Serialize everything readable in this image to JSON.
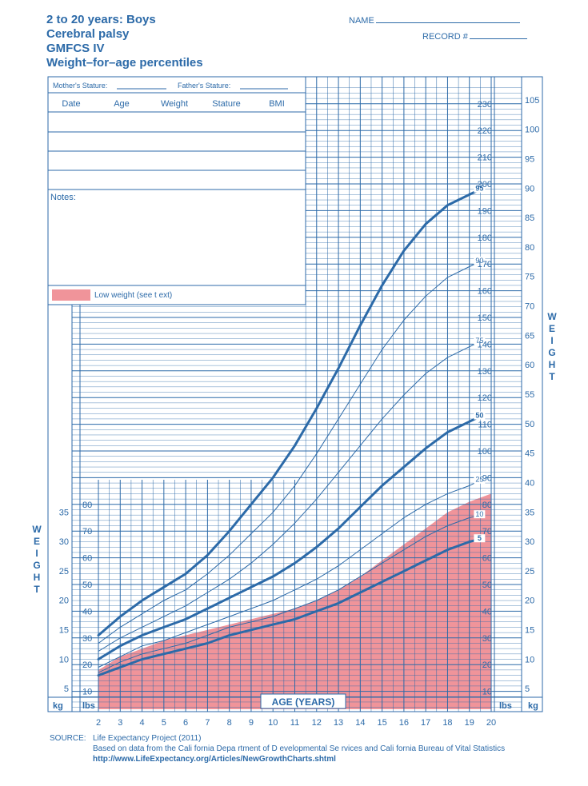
{
  "header": {
    "title_lines": [
      "2 to 20 years: Boys",
      "Cerebral palsy",
      "GMFCS IV",
      "Weight–for–age percentiles"
    ],
    "name_label": "NAME",
    "record_label": "RECORD #"
  },
  "form": {
    "mothers_stature": "Mother's Stature:",
    "fathers_stature": "Father's Stature:",
    "columns": [
      "Date",
      "Age",
      "Weight",
      "Stature",
      "BMI"
    ],
    "notes_label": "Notes:",
    "legend_label": "Low weight (see t ext)"
  },
  "axes": {
    "weight_vertical": "WEIGHT",
    "kg_unit": "kg",
    "lbs_unit": "lbs",
    "age_title": "AGE (YEARS)"
  },
  "source": {
    "label": "SOURCE:",
    "line1": "Life Expectancy Project (2011)",
    "line2": "Based on data from the Cali   fornia Depa  rtment of D evelopmental Se  rvices and Cali   fornia Bureau of Vital Statistics",
    "url": "http://www.LifeExpectancy.org/Articles/NewGrowthCharts.shtml"
  },
  "colors": {
    "grid": "#2c6aa8",
    "curve": "#2c6aa8",
    "low_weight_fill": "#f0949a"
  },
  "chart_data": {
    "type": "line",
    "x_unit": "years",
    "y_unit": "lbs",
    "xlim": [
      2,
      20
    ],
    "ylim_lbs": [
      0,
      240
    ],
    "ylim_kg": [
      0,
      108
    ],
    "x_ticks": [
      2,
      3,
      4,
      5,
      6,
      7,
      8,
      9,
      10,
      11,
      12,
      13,
      14,
      15,
      16,
      17,
      18,
      19,
      20
    ],
    "y_ticks_lbs_left": [
      10,
      20,
      30,
      40,
      50,
      60,
      70,
      80
    ],
    "y_ticks_lbs_right": [
      10,
      20,
      30,
      40,
      50,
      60,
      70,
      80,
      90,
      100,
      110,
      120,
      130,
      140,
      150,
      160,
      170,
      180,
      190,
      200,
      210,
      220,
      230
    ],
    "y_ticks_kg_left": [
      5,
      10,
      15,
      20,
      25,
      30,
      35
    ],
    "y_ticks_kg_right": [
      5,
      10,
      15,
      20,
      25,
      30,
      35,
      40,
      45,
      50,
      55,
      60,
      65,
      70,
      75,
      80,
      85,
      90,
      95,
      100,
      105
    ],
    "x": [
      2,
      3,
      4,
      5,
      6,
      7,
      8,
      9,
      10,
      11,
      12,
      13,
      14,
      15,
      16,
      17,
      18,
      19,
      19.5
    ],
    "series": [
      {
        "name": "95",
        "bold": true,
        "values": [
          31,
          38,
          44,
          49,
          54,
          61,
          70,
          80,
          90,
          102,
          116,
          131,
          147,
          162,
          175,
          185,
          192,
          196,
          198
        ]
      },
      {
        "name": "90",
        "bold": false,
        "values": [
          28,
          34,
          39,
          44,
          48,
          54,
          61,
          69,
          77,
          87,
          99,
          112,
          125,
          138,
          149,
          158,
          165,
          169,
          171
        ]
      },
      {
        "name": "75",
        "bold": false,
        "values": [
          25,
          30,
          34,
          38,
          42,
          47,
          52,
          58,
          65,
          73,
          82,
          92,
          102,
          112,
          121,
          129,
          135,
          139,
          141
        ]
      },
      {
        "name": "50",
        "bold": true,
        "values": [
          22,
          27,
          31,
          34,
          37,
          41,
          45,
          49,
          53,
          58,
          64,
          71,
          79,
          87,
          94,
          101,
          107,
          111,
          113
        ]
      },
      {
        "name": "25",
        "bold": false,
        "values": [
          19,
          23,
          27,
          29,
          32,
          35,
          38,
          41,
          44,
          48,
          52,
          57,
          63,
          69,
          75,
          80,
          84,
          87,
          89
        ]
      },
      {
        "name": "10",
        "bold": false,
        "values": [
          17,
          21,
          24,
          26,
          28,
          31,
          34,
          36,
          38,
          41,
          44,
          48,
          53,
          58,
          63,
          68,
          72,
          75,
          76
        ]
      },
      {
        "name": "5",
        "bold": true,
        "values": [
          16,
          19,
          22,
          24,
          26,
          28,
          31,
          33,
          35,
          37,
          40,
          43,
          47,
          51,
          55,
          59,
          63,
          66,
          67
        ]
      }
    ],
    "low_weight_area": {
      "x": [
        2,
        3,
        4,
        5,
        6,
        7,
        8,
        9,
        10,
        11,
        12,
        13,
        14,
        15,
        16,
        17,
        18,
        19,
        20
      ],
      "upper": [
        18,
        23,
        26,
        29,
        31,
        33,
        35,
        37,
        39,
        41,
        44,
        48,
        53,
        59,
        65,
        71,
        77,
        81,
        84
      ]
    }
  }
}
